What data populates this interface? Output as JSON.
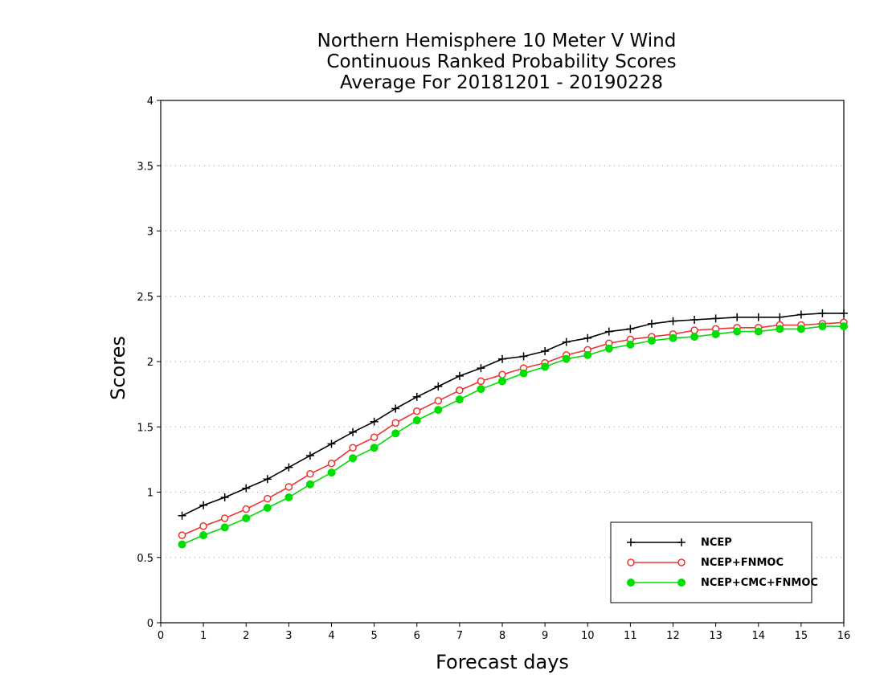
{
  "chart_data": {
    "type": "line",
    "title_lines": [
      "Northern Hemisphere 10 Meter V Wind",
      "Continuous Ranked Probability Scores",
      "Average For 20181201 - 20190228"
    ],
    "xlabel": "Forecast days",
    "ylabel": "Scores",
    "xlim": [
      0,
      16
    ],
    "ylim": [
      0,
      4
    ],
    "x_ticks": [
      "0",
      "1",
      "2",
      "3",
      "4",
      "5",
      "6",
      "7",
      "8",
      "9",
      "10",
      "11",
      "12",
      "13",
      "14",
      "15",
      "16"
    ],
    "y_ticks": [
      "0",
      "0.5",
      "1",
      "1.5",
      "2",
      "2.5",
      "3",
      "3.5",
      "4"
    ],
    "grid": "horizontal dotted",
    "legend_position": "bottom-right",
    "x": [
      0.5,
      1,
      1.5,
      2,
      2.5,
      3,
      3.5,
      4,
      4.5,
      5,
      5.5,
      6,
      6.5,
      7,
      7.5,
      8,
      8.5,
      9,
      9.5,
      10,
      10.5,
      11,
      11.5,
      12,
      12.5,
      13,
      13.5,
      14,
      14.5,
      15,
      15.5,
      16
    ],
    "series": [
      {
        "name": "NCEP",
        "color": "#000000",
        "marker": "plus",
        "values": [
          0.82,
          0.9,
          0.96,
          1.03,
          1.1,
          1.19,
          1.28,
          1.37,
          1.46,
          1.54,
          1.64,
          1.73,
          1.81,
          1.89,
          1.95,
          2.02,
          2.04,
          2.08,
          2.15,
          2.18,
          2.23,
          2.25,
          2.29,
          2.31,
          2.32,
          2.33,
          2.34,
          2.34,
          2.34,
          2.36,
          2.37,
          2.37
        ]
      },
      {
        "name": "NCEP+FNMOC",
        "color": "#ee3333",
        "marker": "open-circle",
        "values": [
          0.67,
          0.74,
          0.8,
          0.87,
          0.95,
          1.04,
          1.14,
          1.22,
          1.34,
          1.42,
          1.53,
          1.62,
          1.7,
          1.78,
          1.85,
          1.9,
          1.95,
          1.99,
          2.05,
          2.09,
          2.14,
          2.17,
          2.19,
          2.21,
          2.24,
          2.25,
          2.26,
          2.26,
          2.28,
          2.28,
          2.29,
          2.3
        ]
      },
      {
        "name": "NCEP+CMC+FNMOC",
        "color": "#00dd00",
        "marker": "filled-circle",
        "values": [
          0.6,
          0.67,
          0.73,
          0.8,
          0.88,
          0.96,
          1.06,
          1.15,
          1.26,
          1.34,
          1.45,
          1.55,
          1.63,
          1.71,
          1.79,
          1.85,
          1.91,
          1.96,
          2.02,
          2.05,
          2.1,
          2.13,
          2.16,
          2.18,
          2.19,
          2.21,
          2.23,
          2.23,
          2.25,
          2.25,
          2.27,
          2.27
        ]
      }
    ]
  }
}
